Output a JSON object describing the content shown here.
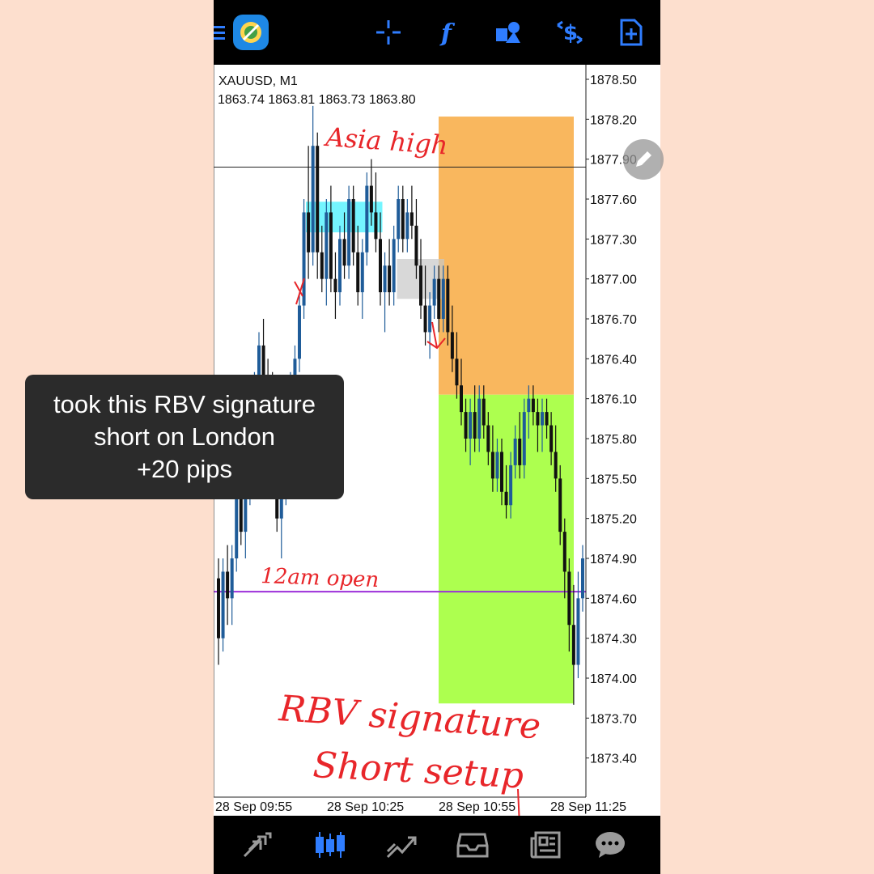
{
  "symbol": {
    "title": "XAUUSD, M1",
    "ohlc": "1863.74 1863.81 1863.73 1863.80"
  },
  "caption": {
    "line1": "took this RBV signature",
    "line2": "short on London",
    "line3": "+20 pips"
  },
  "toolbar": {
    "menu_icon": "hamburger-menu-icon",
    "logo_icon": "mt5-logo-icon",
    "crosshair_icon": "crosshair-icon",
    "indicators_icon": "indicators-f-icon",
    "objects_icon": "shapes-objects-icon",
    "symbol_icon": "dollar-arrows-icon",
    "newdoc_icon": "new-order-document-icon"
  },
  "bottom_nav": [
    {
      "icon": "quotes-arrows-icon"
    },
    {
      "icon": "chart-candles-icon"
    },
    {
      "icon": "trade-chart-icon"
    },
    {
      "icon": "history-inbox-icon"
    },
    {
      "icon": "news-icon"
    },
    {
      "icon": "messages-chat-icon"
    }
  ],
  "colors": {
    "bull_candle": "#1f5c99",
    "bear_candle": "#111111",
    "stop_zone": "#f9b75e",
    "target_zone": "#adff4f",
    "cyan_zone": "#5cf3ff",
    "active_icon": "#2f7dff",
    "open_line": "#9b2fd9",
    "annotation": "#e8262a"
  },
  "chart_data": {
    "type": "candlestick",
    "ylim": [
      1873.1,
      1878.5
    ],
    "price_ticks": [
      "1878.50",
      "1878.20",
      "1877.90",
      "1877.60",
      "1877.30",
      "1877.00",
      "1876.70",
      "1876.40",
      "1876.10",
      "1875.80",
      "1875.50",
      "1875.20",
      "1874.90",
      "1874.60",
      "1874.30",
      "1874.00",
      "1873.70",
      "1873.40"
    ],
    "time_ticks": [
      "28 Sep 09:55",
      "28 Sep 10:25",
      "28 Sep 10:55",
      "28 Sep 11:25"
    ],
    "horizontal_lines": [
      {
        "name": "Asia high",
        "price": 1877.84
      },
      {
        "name": "12am open",
        "price": 1874.65
      }
    ],
    "position": {
      "side": "short",
      "entry": 1876.13,
      "stop": 1878.22,
      "target": 1873.81
    },
    "zones": [
      {
        "label": "cyan",
        "top": 1877.58,
        "bottom": 1877.35,
        "t_start": 0.24,
        "t_end": 0.45
      },
      {
        "label": "gray",
        "top": 1877.15,
        "bottom": 1876.85,
        "t_start": 0.49,
        "t_end": 0.62
      }
    ],
    "annotations": [
      "Asia high",
      "12am open",
      "RBV signature",
      "Short setup"
    ],
    "candles": [
      [
        1874.75,
        1874.9,
        1874.1,
        1874.3
      ],
      [
        1874.3,
        1874.9,
        1874.2,
        1874.8
      ],
      [
        1874.8,
        1875.0,
        1874.4,
        1874.6
      ],
      [
        1874.6,
        1875.0,
        1874.4,
        1874.9
      ],
      [
        1874.9,
        1875.5,
        1874.8,
        1875.4
      ],
      [
        1875.4,
        1875.6,
        1875.0,
        1875.1
      ],
      [
        1875.1,
        1875.6,
        1874.9,
        1875.4
      ],
      [
        1875.4,
        1876.1,
        1875.3,
        1876.0
      ],
      [
        1876.0,
        1876.3,
        1875.8,
        1876.2
      ],
      [
        1876.2,
        1876.6,
        1876.0,
        1876.5
      ],
      [
        1876.5,
        1876.7,
        1876.1,
        1876.2
      ],
      [
        1876.2,
        1876.4,
        1875.9,
        1876.0
      ],
      [
        1876.0,
        1876.3,
        1875.4,
        1875.5
      ],
      [
        1875.5,
        1875.8,
        1875.1,
        1875.2
      ],
      [
        1875.2,
        1875.6,
        1874.9,
        1875.4
      ],
      [
        1875.4,
        1876.1,
        1875.3,
        1876.0
      ],
      [
        1876.0,
        1876.3,
        1875.8,
        1876.2
      ],
      [
        1876.2,
        1876.5,
        1875.9,
        1876.4
      ],
      [
        1876.4,
        1876.9,
        1876.3,
        1876.8
      ],
      [
        1876.8,
        1877.6,
        1876.7,
        1877.5
      ],
      [
        1877.5,
        1878.0,
        1877.0,
        1877.2
      ],
      [
        1877.2,
        1878.3,
        1877.1,
        1878.0
      ],
      [
        1878.0,
        1878.1,
        1877.0,
        1877.2
      ],
      [
        1877.2,
        1877.4,
        1876.9,
        1877.0
      ],
      [
        1877.0,
        1877.6,
        1876.8,
        1877.5
      ],
      [
        1877.5,
        1877.7,
        1876.9,
        1877.0
      ],
      [
        1877.0,
        1877.2,
        1876.7,
        1876.9
      ],
      [
        1876.9,
        1877.4,
        1876.8,
        1877.3
      ],
      [
        1877.3,
        1877.5,
        1877.0,
        1877.1
      ],
      [
        1877.1,
        1877.7,
        1877.0,
        1877.6
      ],
      [
        1877.6,
        1877.7,
        1877.1,
        1877.2
      ],
      [
        1877.2,
        1877.4,
        1876.8,
        1876.9
      ],
      [
        1876.9,
        1877.3,
        1876.7,
        1877.2
      ],
      [
        1877.2,
        1877.8,
        1877.1,
        1877.7
      ],
      [
        1877.7,
        1877.9,
        1877.4,
        1877.5
      ],
      [
        1877.5,
        1877.8,
        1877.2,
        1877.3
      ],
      [
        1877.3,
        1877.5,
        1876.8,
        1876.9
      ],
      [
        1876.9,
        1877.2,
        1876.6,
        1877.1
      ],
      [
        1877.1,
        1877.3,
        1876.8,
        1876.9
      ],
      [
        1876.9,
        1877.4,
        1876.8,
        1877.3
      ],
      [
        1877.3,
        1877.7,
        1877.2,
        1877.6
      ],
      [
        1877.6,
        1877.7,
        1877.2,
        1877.3
      ],
      [
        1877.3,
        1877.6,
        1877.2,
        1877.5
      ],
      [
        1877.5,
        1877.7,
        1877.3,
        1877.4
      ],
      [
        1877.4,
        1877.6,
        1877.0,
        1877.1
      ],
      [
        1877.1,
        1877.3,
        1876.7,
        1876.8
      ],
      [
        1876.8,
        1877.1,
        1876.5,
        1876.6
      ],
      [
        1876.6,
        1876.9,
        1876.4,
        1876.8
      ],
      [
        1876.8,
        1877.1,
        1876.7,
        1877.0
      ],
      [
        1877.0,
        1877.1,
        1876.6,
        1876.7
      ],
      [
        1876.7,
        1877.1,
        1876.6,
        1877.0
      ],
      [
        1877.0,
        1877.1,
        1876.5,
        1876.6
      ],
      [
        1876.6,
        1876.8,
        1876.3,
        1876.4
      ],
      [
        1876.4,
        1876.6,
        1876.1,
        1876.2
      ],
      [
        1876.2,
        1876.4,
        1875.9,
        1876.0
      ],
      [
        1876.0,
        1876.1,
        1875.7,
        1875.8
      ],
      [
        1875.8,
        1876.1,
        1875.6,
        1876.0
      ],
      [
        1876.0,
        1876.2,
        1875.7,
        1875.8
      ],
      [
        1875.8,
        1876.2,
        1875.7,
        1876.1
      ],
      [
        1876.1,
        1876.2,
        1875.8,
        1875.9
      ],
      [
        1875.9,
        1876.0,
        1875.6,
        1875.7
      ],
      [
        1875.7,
        1875.9,
        1875.4,
        1875.5
      ],
      [
        1875.5,
        1875.8,
        1875.4,
        1875.7
      ],
      [
        1875.7,
        1875.8,
        1875.3,
        1875.4
      ],
      [
        1875.4,
        1875.6,
        1875.2,
        1875.3
      ],
      [
        1875.3,
        1875.7,
        1875.2,
        1875.6
      ],
      [
        1875.6,
        1875.9,
        1875.5,
        1875.8
      ],
      [
        1875.8,
        1876.0,
        1875.5,
        1875.6
      ],
      [
        1875.6,
        1876.1,
        1875.5,
        1876.0
      ],
      [
        1876.0,
        1876.2,
        1875.8,
        1876.1
      ],
      [
        1876.1,
        1876.2,
        1875.9,
        1876.0
      ],
      [
        1876.0,
        1876.1,
        1875.7,
        1875.9
      ],
      [
        1875.9,
        1876.1,
        1875.7,
        1876.0
      ],
      [
        1876.0,
        1876.1,
        1875.8,
        1875.9
      ],
      [
        1875.9,
        1876.0,
        1875.6,
        1875.7
      ],
      [
        1875.7,
        1875.9,
        1875.4,
        1875.5
      ],
      [
        1875.5,
        1875.6,
        1875.0,
        1875.1
      ],
      [
        1875.1,
        1875.2,
        1874.6,
        1874.8
      ],
      [
        1874.8,
        1874.9,
        1874.2,
        1874.4
      ],
      [
        1874.4,
        1874.7,
        1873.8,
        1874.1
      ],
      [
        1874.1,
        1874.8,
        1874.0,
        1874.6
      ],
      [
        1874.6,
        1875.0,
        1874.5,
        1874.9
      ]
    ]
  }
}
